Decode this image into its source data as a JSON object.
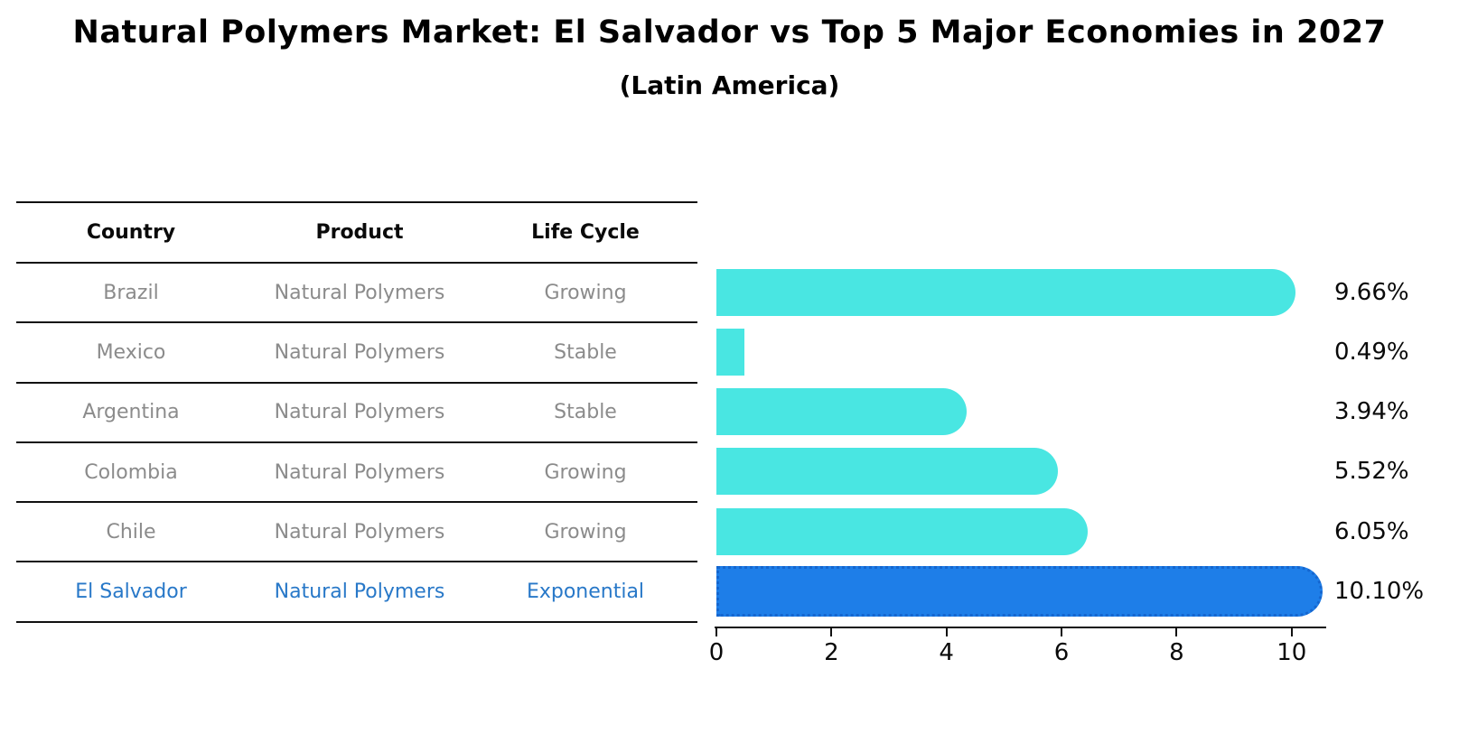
{
  "title": "Natural Polymers Market: El Salvador vs Top 5 Major Economies in 2027",
  "subtitle": "(Latin America)",
  "table": {
    "headers": [
      "Country",
      "Product",
      "Life Cycle"
    ],
    "rows": [
      {
        "country": "Brazil",
        "product": "Natural Polymers",
        "life_cycle": "Growing",
        "highlight": false
      },
      {
        "country": "Mexico",
        "product": "Natural Polymers",
        "life_cycle": "Stable",
        "highlight": false
      },
      {
        "country": "Argentina",
        "product": "Natural Polymers",
        "life_cycle": "Stable",
        "highlight": false
      },
      {
        "country": "Colombia",
        "product": "Natural Polymers",
        "life_cycle": "Growing",
        "highlight": false
      },
      {
        "country": "Chile",
        "product": "Natural Polymers",
        "life_cycle": "Growing",
        "highlight": false
      },
      {
        "country": "El Salvador",
        "product": "Natural Polymers",
        "life_cycle": "Exponential",
        "highlight": true
      }
    ]
  },
  "chart_data": {
    "type": "bar",
    "orientation": "horizontal",
    "title": "Natural Polymers Market: El Salvador vs Top 5 Major Economies in 2027 (Latin America)",
    "categories": [
      "Brazil",
      "Mexico",
      "Argentina",
      "Colombia",
      "Chile",
      "El Salvador"
    ],
    "values": [
      9.66,
      0.49,
      3.94,
      5.52,
      6.05,
      10.1
    ],
    "value_labels": [
      "9.66%",
      "0.49%",
      "3.94%",
      "5.52%",
      "6.05%",
      "10.10%"
    ],
    "xticks": [
      0,
      2,
      4,
      6,
      8,
      10
    ],
    "xlim": [
      0,
      10.6
    ],
    "xlabel": "",
    "ylabel": "",
    "grid": false,
    "legend": false,
    "bar_color": "#49e6e2",
    "highlight_color": "#1e7ee8",
    "highlight_edge_color": "#1566cf",
    "highlight_index": 5
  }
}
